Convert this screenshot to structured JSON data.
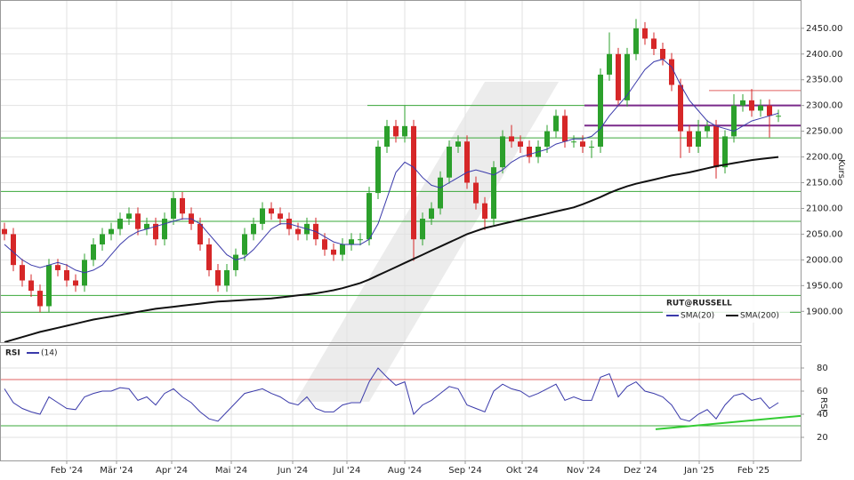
{
  "chart_data": [
    {
      "type": "candlestick",
      "legend_title": "RUT@RUSSELL",
      "ylabel": "Kurs",
      "up_color": "#2ca02c",
      "down_color": "#d62728",
      "open": [
        2060,
        2050,
        1990,
        1960,
        1940,
        1910,
        1990,
        1980,
        1960,
        1950,
        2000,
        2030,
        2050,
        2060,
        2080,
        2090,
        2060,
        2070,
        2040,
        2080,
        2120,
        2090,
        2070,
        2030,
        1980,
        1950,
        1980,
        2010,
        2050,
        2070,
        2100,
        2090,
        2080,
        2060,
        2050,
        2070,
        2040,
        2020,
        2010,
        2030,
        2040,
        2040,
        2130,
        2220,
        2260,
        2240,
        2260,
        2040,
        2080,
        2100,
        2160,
        2220,
        2230,
        2150,
        2110,
        2080,
        2180,
        2240,
        2230,
        2220,
        2200,
        2220,
        2250,
        2280,
        2230,
        2230,
        2220,
        2220,
        2360,
        2400,
        2310,
        2400,
        2450,
        2430,
        2410,
        2390,
        2340,
        2250,
        2220,
        2250,
        2260,
        2180,
        2240,
        2300,
        2310,
        2290,
        2300,
        2280
      ],
      "high": [
        2072,
        2062,
        2002,
        1972,
        1952,
        2002,
        2002,
        1992,
        1972,
        2012,
        2042,
        2062,
        2072,
        2092,
        2102,
        2102,
        2082,
        2082,
        2092,
        2132,
        2132,
        2102,
        2082,
        2042,
        1992,
        1992,
        2022,
        2062,
        2082,
        2112,
        2112,
        2102,
        2092,
        2072,
        2082,
        2082,
        2052,
        2032,
        2042,
        2052,
        2052,
        2142,
        2232,
        2272,
        2272,
        2300,
        2272,
        2092,
        2112,
        2172,
        2232,
        2242,
        2242,
        2162,
        2122,
        2192,
        2252,
        2262,
        2242,
        2232,
        2232,
        2262,
        2292,
        2292,
        2242,
        2242,
        2232,
        2372,
        2442,
        2412,
        2412,
        2468,
        2462,
        2442,
        2422,
        2402,
        2352,
        2262,
        2272,
        2272,
        2272,
        2252,
        2322,
        2322,
        2332,
        2312,
        2312,
        2292
      ],
      "low": [
        2038,
        1978,
        1948,
        1928,
        1898,
        1898,
        1968,
        1948,
        1938,
        1938,
        1988,
        2018,
        2038,
        2048,
        2068,
        2048,
        2048,
        2028,
        2028,
        2068,
        2078,
        2058,
        2018,
        1968,
        1938,
        1938,
        1968,
        1998,
        2038,
        2058,
        2078,
        2068,
        2048,
        2038,
        2038,
        2028,
        2008,
        1998,
        1998,
        2018,
        2028,
        2028,
        2118,
        2208,
        2228,
        2228,
        1998,
        2028,
        2068,
        2088,
        2148,
        2208,
        2138,
        2098,
        2058,
        2068,
        2168,
        2218,
        2208,
        2188,
        2188,
        2208,
        2238,
        2218,
        2218,
        2208,
        2198,
        2208,
        2348,
        2298,
        2298,
        2388,
        2418,
        2398,
        2378,
        2328,
        2198,
        2208,
        2208,
        2238,
        2158,
        2168,
        2228,
        2288,
        2278,
        2278,
        2238,
        2268
      ],
      "close": [
        2050,
        1990,
        1960,
        1940,
        1910,
        1990,
        1980,
        1960,
        1950,
        2000,
        2030,
        2050,
        2060,
        2080,
        2090,
        2060,
        2070,
        2040,
        2080,
        2120,
        2090,
        2070,
        2030,
        1980,
        1950,
        1980,
        2010,
        2050,
        2070,
        2100,
        2090,
        2080,
        2060,
        2050,
        2070,
        2040,
        2020,
        2010,
        2030,
        2040,
        2040,
        2130,
        2220,
        2260,
        2240,
        2260,
        2040,
        2080,
        2100,
        2160,
        2220,
        2230,
        2150,
        2110,
        2080,
        2180,
        2240,
        2230,
        2220,
        2200,
        2220,
        2250,
        2280,
        2230,
        2230,
        2220,
        2220,
        2360,
        2400,
        2310,
        2400,
        2450,
        2430,
        2410,
        2390,
        2340,
        2250,
        2220,
        2250,
        2260,
        2180,
        2240,
        2300,
        2310,
        2290,
        2300,
        2280,
        2280
      ],
      "series": [
        {
          "name": "SMA(20)",
          "color": "#3a3aaa",
          "values": [
            2030,
            2015,
            2000,
            1990,
            1985,
            1990,
            1995,
            1990,
            1980,
            1975,
            1980,
            1990,
            2010,
            2030,
            2045,
            2055,
            2060,
            2065,
            2070,
            2075,
            2080,
            2080,
            2070,
            2050,
            2030,
            2010,
            2000,
            2005,
            2020,
            2040,
            2060,
            2070,
            2070,
            2065,
            2060,
            2055,
            2045,
            2035,
            2030,
            2030,
            2030,
            2040,
            2070,
            2120,
            2170,
            2190,
            2180,
            2160,
            2145,
            2140,
            2150,
            2160,
            2170,
            2175,
            2170,
            2165,
            2175,
            2190,
            2200,
            2205,
            2210,
            2215,
            2225,
            2230,
            2235,
            2235,
            2240,
            2255,
            2280,
            2300,
            2320,
            2345,
            2370,
            2385,
            2390,
            2375,
            2340,
            2310,
            2290,
            2270,
            2260,
            2255,
            2250,
            2260,
            2270,
            2275,
            2280,
            2285
          ]
        },
        {
          "name": "SMA(200)",
          "color": "#111111",
          "values": [
            1840,
            1845,
            1850,
            1855,
            1860,
            1864,
            1868,
            1872,
            1876,
            1880,
            1884,
            1887,
            1890,
            1893,
            1896,
            1899,
            1902,
            1905,
            1907,
            1909,
            1911,
            1913,
            1915,
            1917,
            1919,
            1920,
            1921,
            1922,
            1923,
            1924,
            1925,
            1927,
            1929,
            1931,
            1933,
            1935,
            1938,
            1941,
            1945,
            1950,
            1955,
            1962,
            1970,
            1978,
            1986,
            1994,
            2002,
            2010,
            2018,
            2026,
            2034,
            2042,
            2050,
            2056,
            2062,
            2066,
            2070,
            2074,
            2078,
            2082,
            2086,
            2090,
            2094,
            2098,
            2102,
            2108,
            2115,
            2122,
            2130,
            2137,
            2143,
            2148,
            2152,
            2156,
            2160,
            2164,
            2167,
            2170,
            2174,
            2178,
            2182,
            2185,
            2188,
            2191,
            2194,
            2196,
            2198,
            2200
          ]
        }
      ],
      "levels": [
        {
          "value": 2300,
          "color": "#3aa83a",
          "from": 41.3
        },
        {
          "value": 2237,
          "color": "#3aa83a",
          "from": 0
        },
        {
          "value": 2133,
          "color": "#3aa83a",
          "from": 0
        },
        {
          "value": 2075,
          "color": "#3aa83a",
          "from": 0
        },
        {
          "value": 1931,
          "color": "#3aa83a",
          "from": 0
        },
        {
          "value": 1898,
          "color": "#3aa83a",
          "from": 0
        },
        {
          "value": 2300,
          "color": "#7a2a8a",
          "from": 65.7
        },
        {
          "value": 2261,
          "color": "#7a2a8a",
          "from": 65.7
        },
        {
          "value": 2329,
          "color": "#e06060",
          "from": 79.7
        }
      ],
      "xlim": [
        0,
        90
      ],
      "ylim": [
        1840,
        2505
      ],
      "yticks": [
        {
          "value": 1900,
          "label": "1900.00"
        },
        {
          "value": 1950,
          "label": "1950.00"
        },
        {
          "value": 2000,
          "label": "2000.00"
        },
        {
          "value": 2050,
          "label": "2050.00"
        },
        {
          "value": 2100,
          "label": "2100.00"
        },
        {
          "value": 2150,
          "label": "2150.00"
        },
        {
          "value": 2200,
          "label": "2200.00"
        },
        {
          "value": 2250,
          "label": "2250.00"
        },
        {
          "value": 2300,
          "label": "2300.00"
        },
        {
          "value": 2350,
          "label": "2350.00"
        },
        {
          "value": 2400,
          "label": "2400.00"
        },
        {
          "value": 2450,
          "label": "2450.00"
        }
      ],
      "grid": true
    },
    {
      "type": "line",
      "title": "RSI",
      "ylabel": "RSI",
      "series": [
        {
          "name": "(14)",
          "color": "#3a3aaa",
          "values": [
            62,
            50,
            45,
            42,
            40,
            55,
            50,
            45,
            44,
            55,
            58,
            60,
            60,
            63,
            62,
            52,
            55,
            48,
            58,
            62,
            55,
            50,
            42,
            36,
            34,
            42,
            50,
            58,
            60,
            62,
            58,
            55,
            50,
            48,
            55,
            45,
            42,
            42,
            48,
            50,
            50,
            68,
            80,
            72,
            65,
            68,
            40,
            48,
            52,
            58,
            64,
            62,
            48,
            45,
            42,
            60,
            66,
            62,
            60,
            55,
            58,
            62,
            66,
            52,
            55,
            52,
            52,
            72,
            75,
            55,
            64,
            68,
            60,
            58,
            55,
            48,
            36,
            34,
            40,
            44,
            36,
            48,
            56,
            58,
            52,
            54,
            45,
            50
          ]
        }
      ],
      "levels": [
        {
          "value": 70,
          "color": "#e06060",
          "from": 0
        },
        {
          "value": 30,
          "color": "#3aa83a",
          "from": 0
        }
      ],
      "trendlines": [
        {
          "x": [
            73.7,
            90
          ],
          "values": [
            27,
            38.6
          ],
          "color": "#33cc33"
        }
      ],
      "xlim": [
        0,
        90
      ],
      "ylim": [
        0,
        100
      ],
      "yticks": [
        20,
        40,
        60,
        80
      ],
      "xticks": [
        {
          "value": 7.5,
          "label": "Feb '24"
        },
        {
          "value": 13.1,
          "label": "Mär '24"
        },
        {
          "value": 19.3,
          "label": "Apr '24"
        },
        {
          "value": 26,
          "label": "Mai '24"
        },
        {
          "value": 32.9,
          "label": "Jun '24"
        },
        {
          "value": 39,
          "label": "Jul '24"
        },
        {
          "value": 45.5,
          "label": "Aug '24"
        },
        {
          "value": 52.3,
          "label": "Sep '24"
        },
        {
          "value": 58.7,
          "label": "Okt '24"
        },
        {
          "value": 65.6,
          "label": "Nov '24"
        },
        {
          "value": 72,
          "label": "Dez '24"
        },
        {
          "value": 78.6,
          "label": "Jan '25"
        },
        {
          "value": 84.7,
          "label": "Feb '25"
        }
      ],
      "grid": true
    }
  ]
}
